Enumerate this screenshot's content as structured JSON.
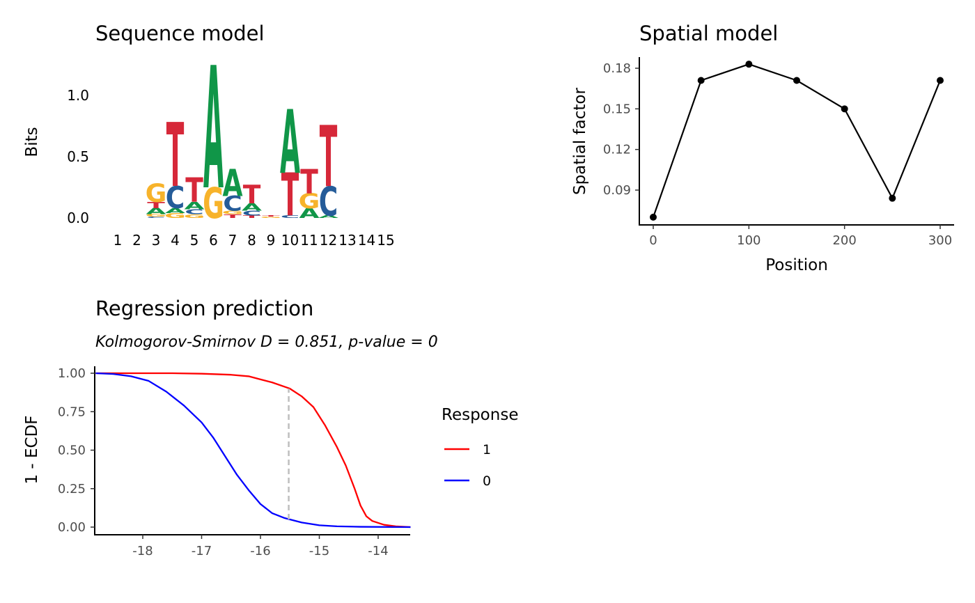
{
  "chart_data": [
    {
      "type": "sequence-logo",
      "title": "Sequence model",
      "ylabel": "Bits",
      "ylim": [
        0,
        1.25
      ],
      "yticks": [
        0.0,
        0.5,
        1.0
      ],
      "ytick_labels": [
        "0.0",
        "0.5",
        "1.0"
      ],
      "positions": [
        "1",
        "2",
        "3",
        "4",
        "5",
        "6",
        "7",
        "8",
        "9",
        "10",
        "11",
        "12",
        "13",
        "14",
        "15"
      ],
      "colors": {
        "A": "#109648",
        "C": "#255C99",
        "G": "#F7B32B",
        "T": "#D62839"
      },
      "stacks": [
        [],
        [
          {
            "l": "C",
            "h": 0.01
          },
          {
            "l": "G",
            "h": 0.02
          },
          {
            "l": "A",
            "h": 0.05
          },
          {
            "l": "T",
            "h": 0.05
          },
          {
            "l": "G",
            "h": 0.15
          }
        ],
        [
          {
            "l": "G",
            "h": 0.04
          },
          {
            "l": "A",
            "h": 0.04
          },
          {
            "l": "C",
            "h": 0.18
          },
          {
            "l": "T",
            "h": 0.52
          }
        ],
        [
          {
            "l": "G",
            "h": 0.03
          },
          {
            "l": "C",
            "h": 0.04
          },
          {
            "l": "A",
            "h": 0.06
          },
          {
            "l": "T",
            "h": 0.2
          }
        ],
        [
          {
            "l": "G",
            "h": 0.25
          },
          {
            "l": "A",
            "h": 1.0
          }
        ],
        [
          {
            "l": "T",
            "h": 0.03
          },
          {
            "l": "G",
            "h": 0.03
          },
          {
            "l": "C",
            "h": 0.12
          },
          {
            "l": "A",
            "h": 0.22
          }
        ],
        [
          {
            "l": "T",
            "h": 0.02
          },
          {
            "l": "C",
            "h": 0.04
          },
          {
            "l": "A",
            "h": 0.06
          },
          {
            "l": "T",
            "h": 0.15
          }
        ],
        [
          {
            "l": "G",
            "h": 0.01
          },
          {
            "l": "T",
            "h": 0.01
          }
        ],
        [
          {
            "l": "C",
            "h": 0.02
          },
          {
            "l": "T",
            "h": 0.35
          },
          {
            "l": "A",
            "h": 0.52
          }
        ],
        [
          {
            "l": "A",
            "h": 0.08
          },
          {
            "l": "G",
            "h": 0.12
          },
          {
            "l": "T",
            "h": 0.2
          }
        ],
        [
          {
            "l": "A",
            "h": 0.02
          },
          {
            "l": "C",
            "h": 0.24
          },
          {
            "l": "T",
            "h": 0.5
          }
        ],
        [],
        [],
        [],
        []
      ]
    },
    {
      "type": "line",
      "title": "Spatial model",
      "xlabel": "Position",
      "ylabel": "Spatial factor",
      "x": [
        0,
        50,
        100,
        150,
        200,
        250,
        300
      ],
      "y": [
        0.07,
        0.171,
        0.183,
        0.171,
        0.15,
        0.084,
        0.171
      ],
      "xlim": [
        -10,
        310
      ],
      "ylim": [
        0.0655,
        0.1875
      ],
      "xticks": [
        0,
        100,
        200,
        300
      ],
      "yticks": [
        0.09,
        0.12,
        0.15,
        0.18
      ],
      "ytick_labels": [
        "0.09",
        "0.12",
        "0.15",
        "0.18"
      ],
      "markers": true,
      "color": "#000000",
      "grid": false
    },
    {
      "type": "line",
      "title": "Regression prediction",
      "subtitle": "Kolmogorov-Smirnov D = 0.851, p-value = 0",
      "ylabel": "1 - ECDF",
      "xlim": [
        -18.8,
        -13.45
      ],
      "ylim": [
        -0.05,
        1.05
      ],
      "xticks": [
        -18,
        -17,
        -16,
        -15,
        -14
      ],
      "yticks": [
        0,
        0.25,
        0.5,
        0.75,
        1
      ],
      "ytick_labels": [
        "0.00",
        "0.25",
        "0.50",
        "0.75",
        "1.00"
      ],
      "legend_title": "Response",
      "legend_position": "right",
      "grid": false,
      "ks_line": {
        "x": -15.52,
        "y_from": 0.05,
        "y_to": 0.9,
        "color": "#bebebe"
      },
      "series": [
        {
          "name": "1",
          "color": "#ff0000",
          "x": [
            -18.8,
            -17.5,
            -17.0,
            -16.5,
            -16.2,
            -16.0,
            -15.8,
            -15.5,
            -15.3,
            -15.1,
            -14.9,
            -14.7,
            -14.55,
            -14.4,
            -14.3,
            -14.2,
            -14.1,
            -13.9,
            -13.7,
            -13.45
          ],
          "y": [
            1.0,
            1.0,
            0.997,
            0.99,
            0.98,
            0.96,
            0.94,
            0.9,
            0.85,
            0.78,
            0.66,
            0.52,
            0.4,
            0.25,
            0.14,
            0.07,
            0.04,
            0.015,
            0.005,
            0.0
          ]
        },
        {
          "name": "0",
          "color": "#0000ff",
          "x": [
            -18.8,
            -18.5,
            -18.2,
            -17.9,
            -17.6,
            -17.3,
            -17.0,
            -16.8,
            -16.6,
            -16.4,
            -16.2,
            -16.0,
            -15.8,
            -15.6,
            -15.5,
            -15.3,
            -15.0,
            -14.7,
            -14.3,
            -13.45
          ],
          "y": [
            1.0,
            0.995,
            0.98,
            0.95,
            0.88,
            0.79,
            0.68,
            0.58,
            0.46,
            0.34,
            0.24,
            0.15,
            0.09,
            0.06,
            0.05,
            0.03,
            0.012,
            0.005,
            0.002,
            0.0
          ]
        }
      ]
    }
  ]
}
